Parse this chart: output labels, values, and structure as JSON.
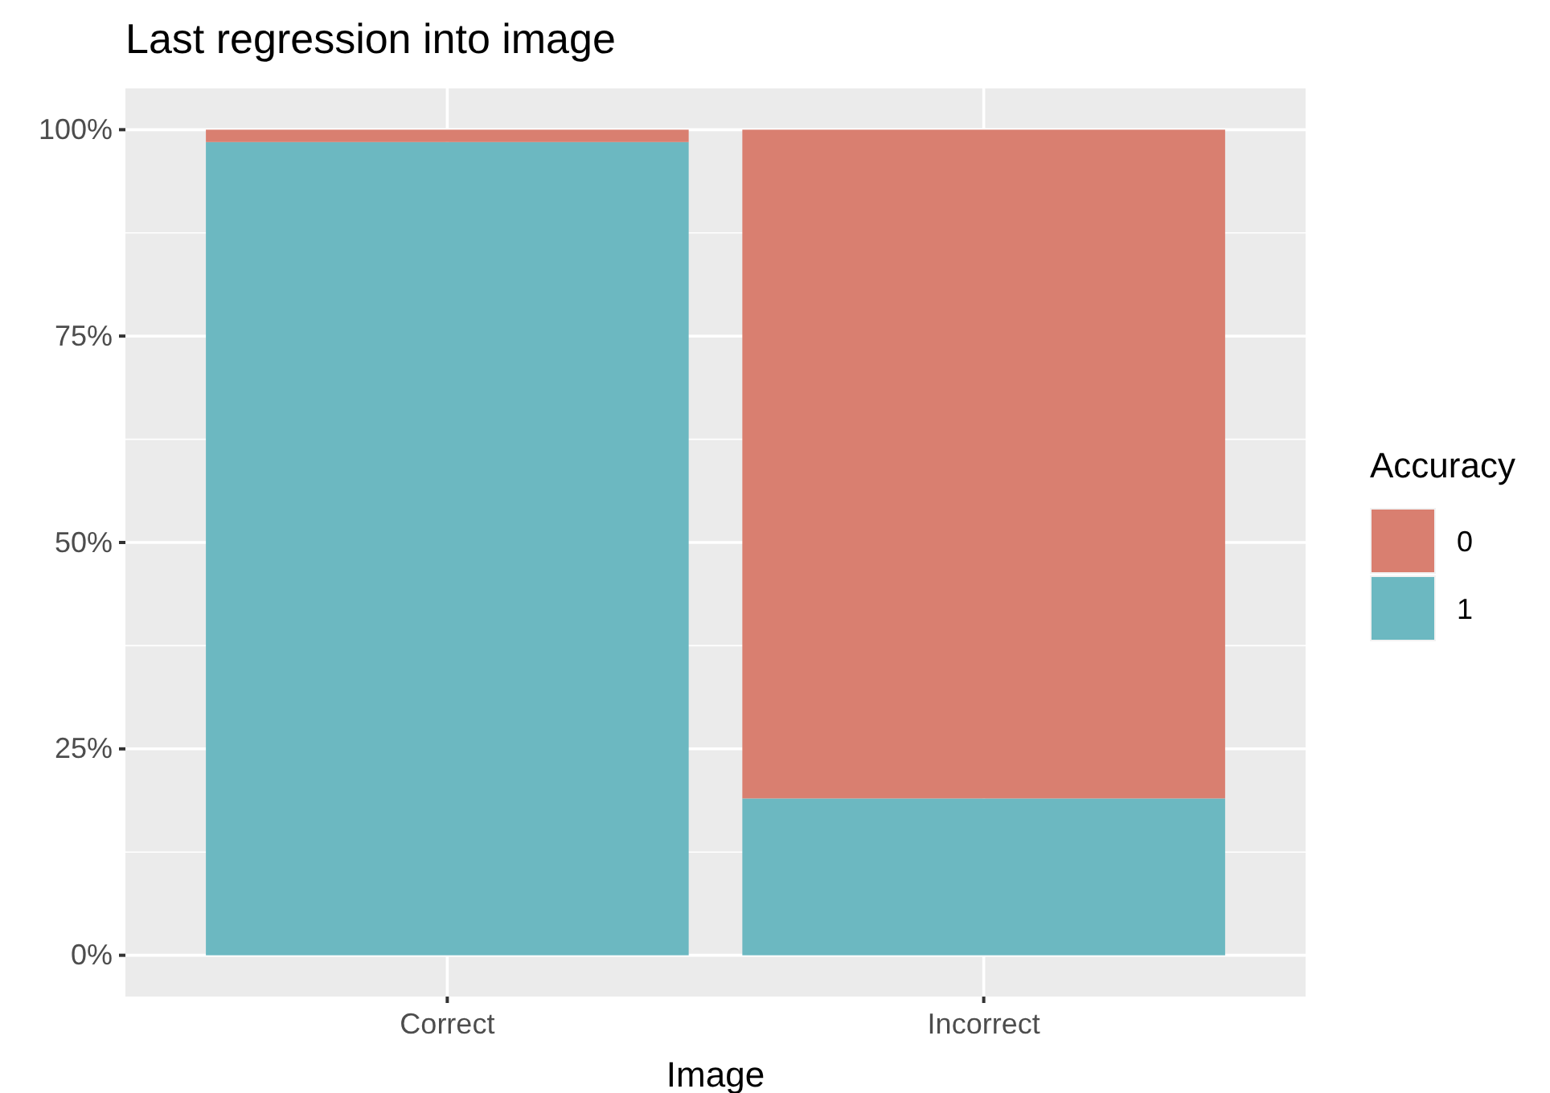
{
  "chart_data": {
    "type": "bar",
    "title": "Last regression into image",
    "xlabel": "Image",
    "legend_title": "Accuracy",
    "categories": [
      "Correct",
      "Incorrect"
    ],
    "stacked": true,
    "series": [
      {
        "name": "1",
        "color": "#6cb8c1",
        "values": [
          98.5,
          19
        ]
      },
      {
        "name": "0",
        "color": "#d97f70",
        "values": [
          1.5,
          81
        ]
      }
    ],
    "ylim": [
      -5,
      105
    ],
    "yticks": [
      {
        "value": 0,
        "label": "0%"
      },
      {
        "value": 25,
        "label": "25%"
      },
      {
        "value": 50,
        "label": "50%"
      },
      {
        "value": 75,
        "label": "75%"
      },
      {
        "value": 100,
        "label": "100%"
      }
    ],
    "grid": true,
    "legend": "right"
  }
}
